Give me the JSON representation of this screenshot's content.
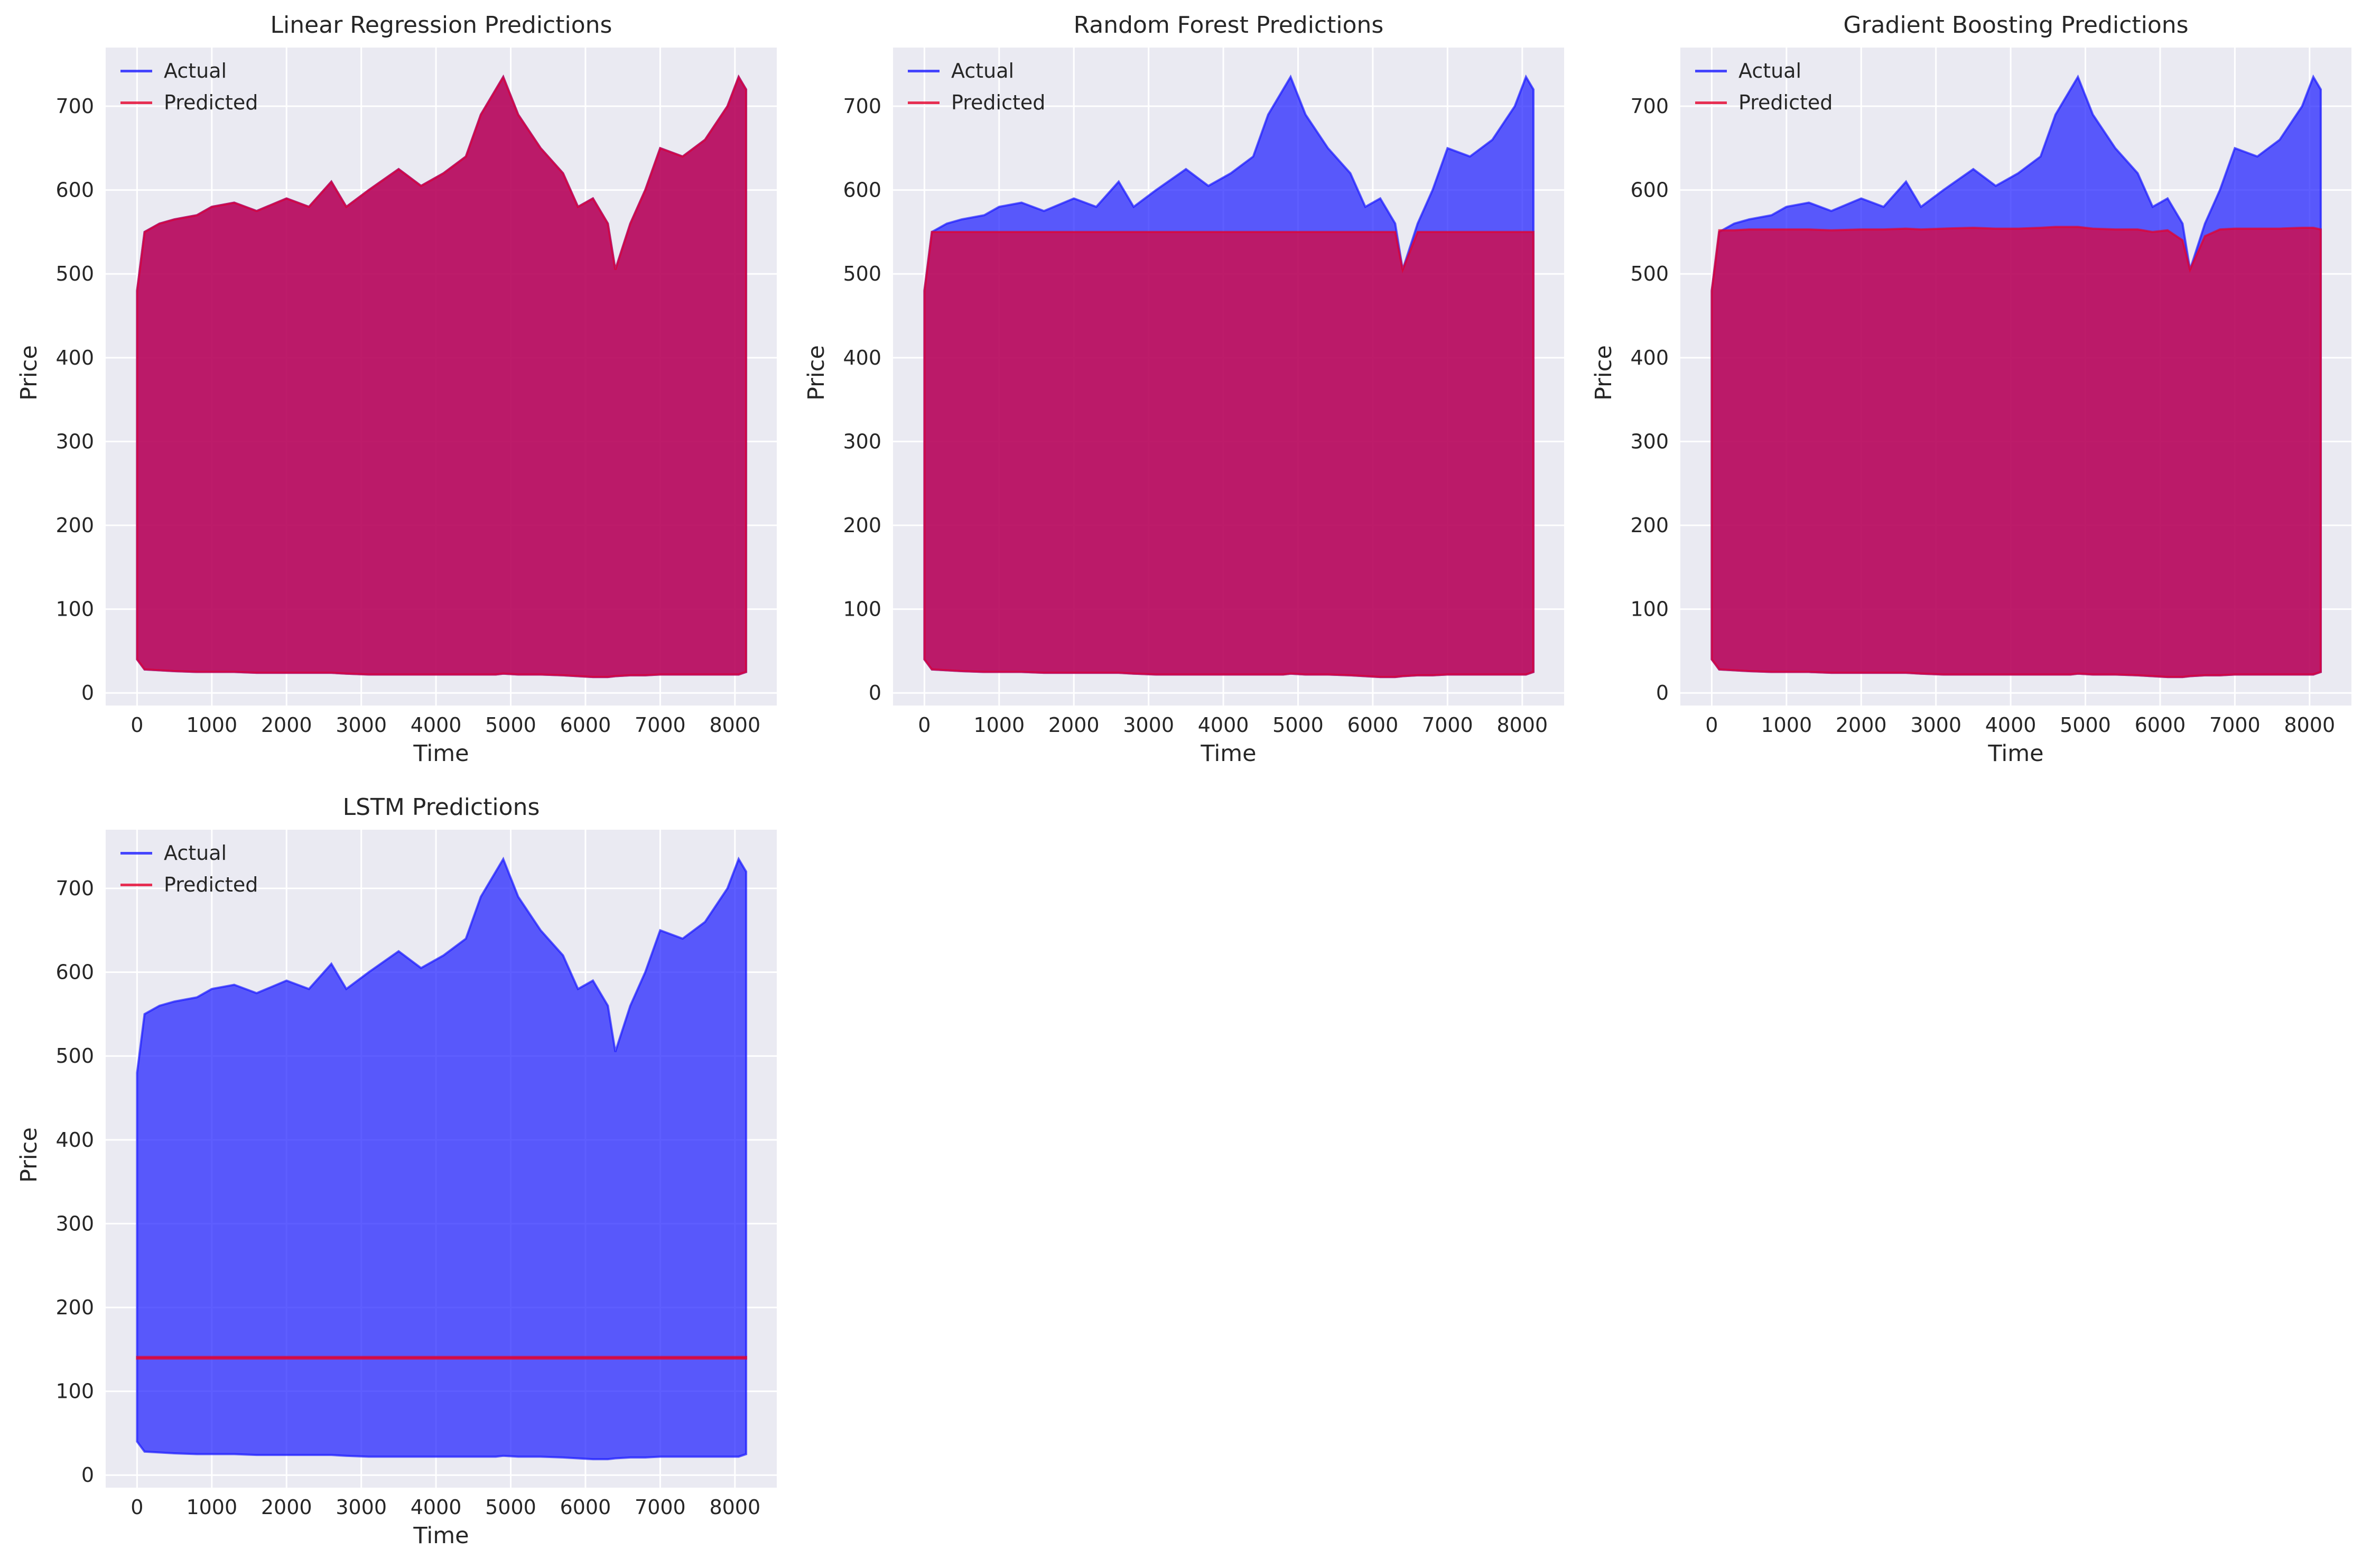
{
  "figure": {
    "background": "#ffffff",
    "axes_face": "#eaeaf2",
    "grid_color": "#ffffff",
    "actual_color": "#1a1aff",
    "predicted_color": "#e5002b",
    "overlap_color": "#c8174a"
  },
  "chart_data": [
    {
      "type": "line",
      "title": "Linear Regression Predictions",
      "xlabel": "Time",
      "ylabel": "Price",
      "xlim": [
        -420,
        8560
      ],
      "ylim": [
        -15,
        770
      ],
      "xticks": [
        0,
        1000,
        2000,
        3000,
        4000,
        5000,
        6000,
        7000,
        8000
      ],
      "yticks": [
        0,
        100,
        200,
        300,
        400,
        500,
        600,
        700
      ],
      "grid": true,
      "legend": "top-left",
      "series": [
        {
          "name": "Actual",
          "color": "#1a1aff",
          "alpha": 0.7,
          "x": [
            0,
            100,
            300,
            500,
            800,
            1000,
            1300,
            1600,
            2000,
            2300,
            2600,
            2800,
            3100,
            3500,
            3800,
            4100,
            4400,
            4600,
            4800,
            4900,
            5100,
            5400,
            5700,
            5900,
            6100,
            6300,
            6400,
            6600,
            6800,
            7000,
            7300,
            7600,
            7900,
            8050,
            8150
          ],
          "upper": [
            480,
            550,
            560,
            565,
            570,
            580,
            585,
            575,
            590,
            580,
            610,
            580,
            600,
            625,
            605,
            620,
            640,
            690,
            720,
            735,
            690,
            650,
            620,
            580,
            590,
            560,
            505,
            560,
            600,
            650,
            640,
            660,
            700,
            735,
            720
          ],
          "lower": [
            40,
            28,
            27,
            26,
            25,
            25,
            25,
            24,
            24,
            24,
            24,
            23,
            22,
            22,
            22,
            22,
            22,
            22,
            22,
            23,
            22,
            22,
            21,
            20,
            19,
            19,
            20,
            21,
            21,
            22,
            22,
            22,
            22,
            22,
            25
          ]
        },
        {
          "name": "Predicted",
          "color": "#e5002b",
          "alpha": 0.7,
          "x": [
            0,
            100,
            300,
            500,
            800,
            1000,
            1300,
            1600,
            2000,
            2300,
            2600,
            2800,
            3100,
            3500,
            3800,
            4100,
            4400,
            4600,
            4800,
            4900,
            5100,
            5400,
            5700,
            5900,
            6100,
            6300,
            6400,
            6600,
            6800,
            7000,
            7300,
            7600,
            7900,
            8050,
            8150
          ],
          "upper": [
            480,
            550,
            560,
            565,
            570,
            580,
            585,
            575,
            590,
            580,
            610,
            580,
            600,
            625,
            605,
            620,
            640,
            690,
            720,
            735,
            690,
            650,
            620,
            580,
            590,
            560,
            505,
            560,
            600,
            650,
            640,
            660,
            700,
            735,
            720
          ],
          "lower": [
            40,
            28,
            27,
            26,
            25,
            25,
            25,
            24,
            24,
            24,
            24,
            23,
            22,
            22,
            22,
            22,
            22,
            22,
            22,
            23,
            22,
            22,
            21,
            20,
            19,
            19,
            20,
            21,
            21,
            22,
            22,
            22,
            22,
            22,
            25
          ]
        }
      ]
    },
    {
      "type": "line",
      "title": "Random Forest Predictions",
      "xlabel": "Time",
      "ylabel": "Price",
      "xlim": [
        -420,
        8560
      ],
      "ylim": [
        -15,
        770
      ],
      "xticks": [
        0,
        1000,
        2000,
        3000,
        4000,
        5000,
        6000,
        7000,
        8000
      ],
      "yticks": [
        0,
        100,
        200,
        300,
        400,
        500,
        600,
        700
      ],
      "grid": true,
      "legend": "top-left",
      "series": [
        {
          "name": "Actual",
          "color": "#1a1aff",
          "alpha": 0.7,
          "x": [
            0,
            100,
            300,
            500,
            800,
            1000,
            1300,
            1600,
            2000,
            2300,
            2600,
            2800,
            3100,
            3500,
            3800,
            4100,
            4400,
            4600,
            4800,
            4900,
            5100,
            5400,
            5700,
            5900,
            6100,
            6300,
            6400,
            6600,
            6800,
            7000,
            7300,
            7600,
            7900,
            8050,
            8150
          ],
          "upper": [
            480,
            550,
            560,
            565,
            570,
            580,
            585,
            575,
            590,
            580,
            610,
            580,
            600,
            625,
            605,
            620,
            640,
            690,
            720,
            735,
            690,
            650,
            620,
            580,
            590,
            560,
            505,
            560,
            600,
            650,
            640,
            660,
            700,
            735,
            720
          ],
          "lower": [
            40,
            28,
            27,
            26,
            25,
            25,
            25,
            24,
            24,
            24,
            24,
            23,
            22,
            22,
            22,
            22,
            22,
            22,
            22,
            23,
            22,
            22,
            21,
            20,
            19,
            19,
            20,
            21,
            21,
            22,
            22,
            22,
            22,
            22,
            25
          ]
        },
        {
          "name": "Predicted",
          "color": "#e5002b",
          "alpha": 0.7,
          "x": [
            0,
            100,
            300,
            500,
            800,
            1000,
            1300,
            1600,
            2000,
            2300,
            2600,
            2800,
            3100,
            3500,
            3800,
            4100,
            4400,
            4600,
            4800,
            4900,
            5100,
            5400,
            5700,
            5900,
            6100,
            6300,
            6400,
            6600,
            6800,
            7000,
            7300,
            7600,
            7900,
            8050,
            8150
          ],
          "upper": [
            480,
            550,
            550,
            550,
            550,
            550,
            550,
            550,
            550,
            550,
            550,
            550,
            550,
            550,
            550,
            550,
            550,
            550,
            550,
            550,
            550,
            550,
            550,
            550,
            550,
            550,
            505,
            550,
            550,
            550,
            550,
            550,
            550,
            550,
            550
          ],
          "lower": [
            40,
            28,
            27,
            26,
            25,
            25,
            25,
            24,
            24,
            24,
            24,
            23,
            22,
            22,
            22,
            22,
            22,
            22,
            22,
            23,
            22,
            22,
            21,
            20,
            19,
            19,
            20,
            21,
            21,
            22,
            22,
            22,
            22,
            22,
            25
          ]
        }
      ]
    },
    {
      "type": "line",
      "title": "Gradient Boosting Predictions",
      "xlabel": "Time",
      "ylabel": "Price",
      "xlim": [
        -420,
        8560
      ],
      "ylim": [
        -15,
        770
      ],
      "xticks": [
        0,
        1000,
        2000,
        3000,
        4000,
        5000,
        6000,
        7000,
        8000
      ],
      "yticks": [
        0,
        100,
        200,
        300,
        400,
        500,
        600,
        700
      ],
      "grid": true,
      "legend": "top-left",
      "series": [
        {
          "name": "Actual",
          "color": "#1a1aff",
          "alpha": 0.7,
          "x": [
            0,
            100,
            300,
            500,
            800,
            1000,
            1300,
            1600,
            2000,
            2300,
            2600,
            2800,
            3100,
            3500,
            3800,
            4100,
            4400,
            4600,
            4800,
            4900,
            5100,
            5400,
            5700,
            5900,
            6100,
            6300,
            6400,
            6600,
            6800,
            7000,
            7300,
            7600,
            7900,
            8050,
            8150
          ],
          "upper": [
            480,
            550,
            560,
            565,
            570,
            580,
            585,
            575,
            590,
            580,
            610,
            580,
            600,
            625,
            605,
            620,
            640,
            690,
            720,
            735,
            690,
            650,
            620,
            580,
            590,
            560,
            505,
            560,
            600,
            650,
            640,
            660,
            700,
            735,
            720
          ],
          "lower": [
            40,
            28,
            27,
            26,
            25,
            25,
            25,
            24,
            24,
            24,
            24,
            23,
            22,
            22,
            22,
            22,
            22,
            22,
            22,
            23,
            22,
            22,
            21,
            20,
            19,
            19,
            20,
            21,
            21,
            22,
            22,
            22,
            22,
            22,
            25
          ]
        },
        {
          "name": "Predicted",
          "color": "#e5002b",
          "alpha": 0.7,
          "x": [
            0,
            100,
            300,
            500,
            800,
            1000,
            1300,
            1600,
            2000,
            2300,
            2600,
            2800,
            3100,
            3500,
            3800,
            4100,
            4400,
            4600,
            4800,
            4900,
            5100,
            5400,
            5700,
            5900,
            6100,
            6300,
            6400,
            6600,
            6800,
            7000,
            7300,
            7600,
            7900,
            8050,
            8150
          ],
          "upper": [
            480,
            552,
            552,
            553,
            553,
            553,
            553,
            552,
            553,
            553,
            554,
            553,
            554,
            555,
            554,
            554,
            555,
            556,
            556,
            556,
            554,
            553,
            553,
            550,
            552,
            540,
            505,
            545,
            553,
            554,
            554,
            554,
            555,
            555,
            553
          ],
          "lower": [
            40,
            28,
            27,
            26,
            25,
            25,
            25,
            24,
            24,
            24,
            24,
            23,
            22,
            22,
            22,
            22,
            22,
            22,
            22,
            23,
            22,
            22,
            21,
            20,
            19,
            19,
            20,
            21,
            21,
            22,
            22,
            22,
            22,
            22,
            25
          ]
        }
      ]
    },
    {
      "type": "line",
      "title": "LSTM Predictions",
      "xlabel": "Time",
      "ylabel": "Price",
      "xlim": [
        -420,
        8560
      ],
      "ylim": [
        -15,
        770
      ],
      "xticks": [
        0,
        1000,
        2000,
        3000,
        4000,
        5000,
        6000,
        7000,
        8000
      ],
      "yticks": [
        0,
        100,
        200,
        300,
        400,
        500,
        600,
        700
      ],
      "grid": true,
      "legend": "top-left",
      "series": [
        {
          "name": "Actual",
          "color": "#1a1aff",
          "alpha": 0.7,
          "x": [
            0,
            100,
            300,
            500,
            800,
            1000,
            1300,
            1600,
            2000,
            2300,
            2600,
            2800,
            3100,
            3500,
            3800,
            4100,
            4400,
            4600,
            4800,
            4900,
            5100,
            5400,
            5700,
            5900,
            6100,
            6300,
            6400,
            6600,
            6800,
            7000,
            7300,
            7600,
            7900,
            8050,
            8150
          ],
          "upper": [
            480,
            550,
            560,
            565,
            570,
            580,
            585,
            575,
            590,
            580,
            610,
            580,
            600,
            625,
            605,
            620,
            640,
            690,
            720,
            735,
            690,
            650,
            620,
            580,
            590,
            560,
            505,
            560,
            600,
            650,
            640,
            660,
            700,
            735,
            720
          ],
          "lower": [
            40,
            28,
            27,
            26,
            25,
            25,
            25,
            24,
            24,
            24,
            24,
            23,
            22,
            22,
            22,
            22,
            22,
            22,
            22,
            23,
            22,
            22,
            21,
            20,
            19,
            19,
            20,
            21,
            21,
            22,
            22,
            22,
            22,
            22,
            25
          ]
        },
        {
          "name": "Predicted",
          "color": "#e5002b",
          "alpha": 0.7,
          "x": [
            0,
            8150
          ],
          "upper": [
            141,
            141
          ],
          "lower": [
            139,
            139
          ]
        }
      ]
    }
  ]
}
